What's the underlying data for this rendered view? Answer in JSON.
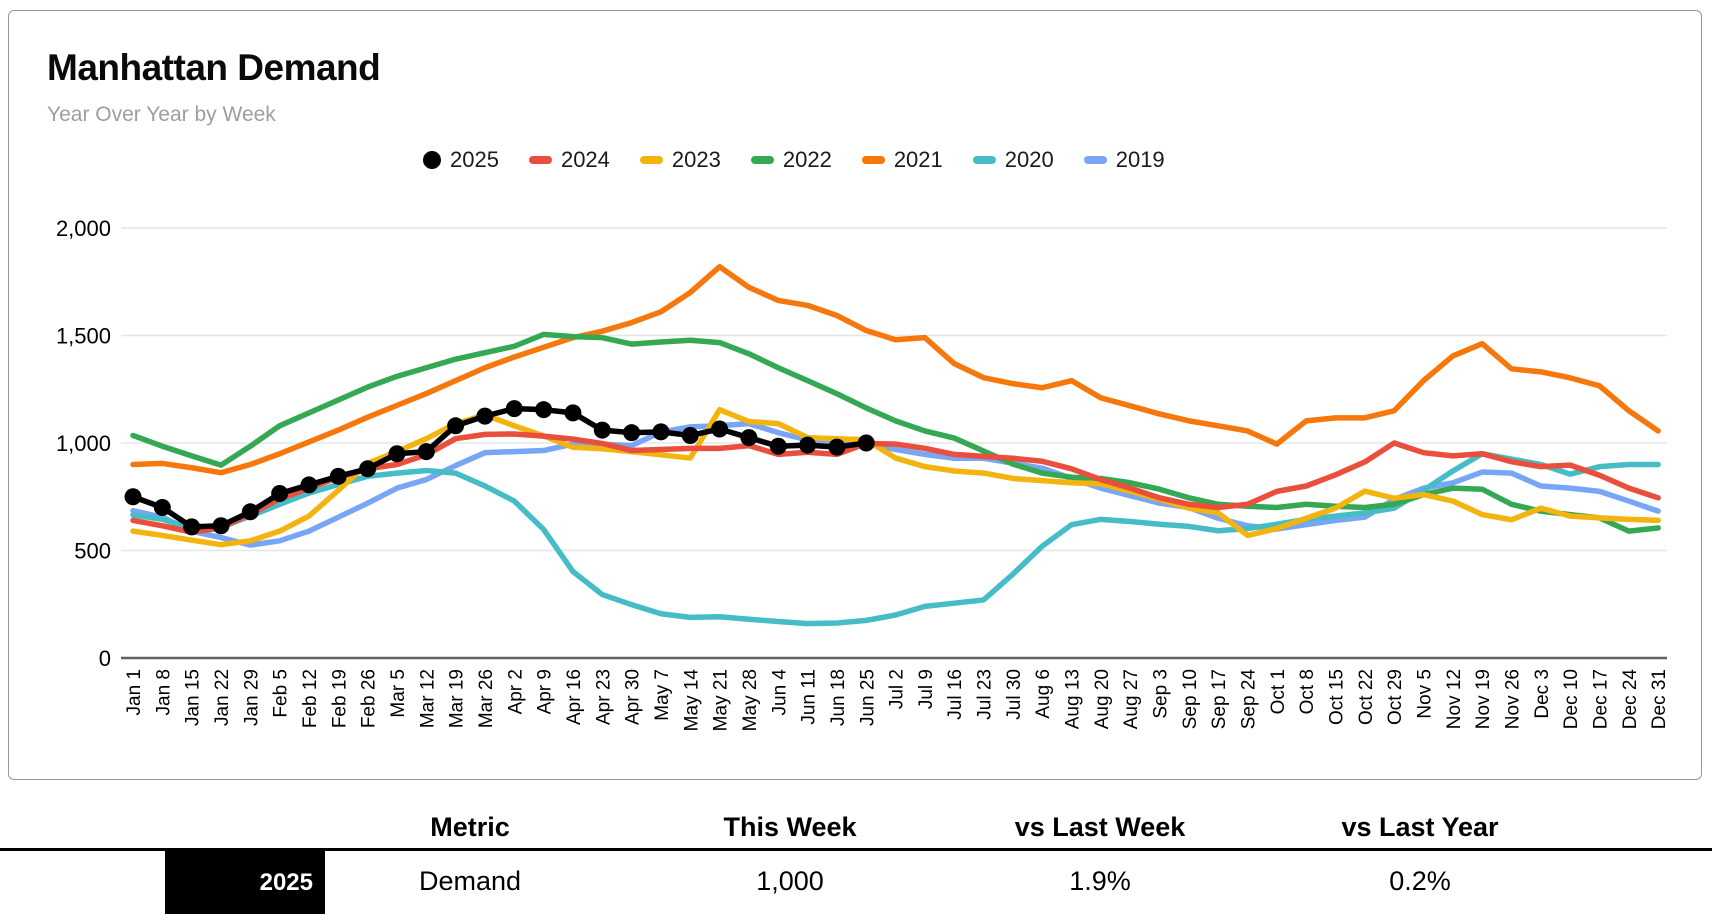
{
  "card": {
    "title": "Manhattan Demand",
    "subtitle": "Year Over Year by Week"
  },
  "chart_data": {
    "type": "line",
    "title": "Manhattan Demand",
    "subtitle": "Year Over Year by Week",
    "xlabel": "",
    "ylabel": "",
    "ylim": [
      0,
      2000
    ],
    "grid": true,
    "legend_position": "top",
    "ytick_values": [
      0,
      500,
      1000,
      1500,
      2000
    ],
    "ytick_labels": [
      "0",
      "500",
      "1,000",
      "1,500",
      "2,000"
    ],
    "x": [
      "Jan 1",
      "Jan 8",
      "Jan 15",
      "Jan 22",
      "Jan 29",
      "Feb 5",
      "Feb 12",
      "Feb 19",
      "Feb 26",
      "Mar 5",
      "Mar 12",
      "Mar 19",
      "Mar 26",
      "Apr 2",
      "Apr 9",
      "Apr 16",
      "Apr 23",
      "Apr 30",
      "May 7",
      "May 14",
      "May 21",
      "May 28",
      "Jun 4",
      "Jun 11",
      "Jun 18",
      "Jun 25",
      "Jul 2",
      "Jul 9",
      "Jul 16",
      "Jul 23",
      "Jul 30",
      "Aug 6",
      "Aug 13",
      "Aug 20",
      "Aug 27",
      "Sep 3",
      "Sep 10",
      "Sep 17",
      "Sep 24",
      "Oct 1",
      "Oct 8",
      "Oct 15",
      "Oct 22",
      "Oct 29",
      "Nov 5",
      "Nov 12",
      "Nov 19",
      "Nov 26",
      "Dec 3",
      "Dec 10",
      "Dec 17",
      "Dec 24",
      "Dec 31"
    ],
    "series": [
      {
        "name": "2025",
        "color": "#000000",
        "marker": "circle",
        "values": [
          750,
          700,
          610,
          615,
          680,
          765,
          805,
          845,
          880,
          950,
          960,
          1080,
          1125,
          1160,
          1155,
          1140,
          1060,
          1048,
          1052,
          1035,
          1065,
          1025,
          985,
          990,
          981,
          1000
        ]
      },
      {
        "name": "2024",
        "color": "#e94f3c",
        "marker": "dash",
        "values": [
          640,
          615,
          585,
          605,
          670,
          740,
          790,
          840,
          880,
          900,
          945,
          1020,
          1040,
          1042,
          1032,
          1018,
          998,
          965,
          970,
          975,
          975,
          988,
          947,
          957,
          947,
          998,
          995,
          975,
          947,
          938,
          929,
          915,
          880,
          830,
          790,
          745,
          715,
          700,
          715,
          775,
          800,
          852,
          912,
          1000,
          955,
          940,
          950,
          913,
          890,
          897,
          850,
          790,
          745
        ]
      },
      {
        "name": "2023",
        "color": "#f3b410",
        "marker": "dash",
        "values": [
          590,
          570,
          548,
          527,
          545,
          590,
          660,
          780,
          905,
          960,
          1020,
          1090,
          1130,
          1080,
          1033,
          980,
          973,
          960,
          945,
          930,
          1155,
          1100,
          1090,
          1025,
          1020,
          1015,
          930,
          890,
          870,
          860,
          835,
          825,
          815,
          810,
          776,
          738,
          697,
          675,
          570,
          602,
          650,
          697,
          776,
          743,
          760,
          730,
          667,
          643,
          697,
          660,
          652,
          645,
          640
        ]
      },
      {
        "name": "2022",
        "color": "#34a853",
        "marker": "dash",
        "values": [
          1035,
          985,
          940,
          897,
          985,
          1080,
          1140,
          1200,
          1260,
          1310,
          1350,
          1390,
          1420,
          1450,
          1505,
          1495,
          1490,
          1460,
          1470,
          1478,
          1467,
          1415,
          1350,
          1290,
          1229,
          1163,
          1103,
          1056,
          1023,
          963,
          902,
          860,
          841,
          835,
          815,
          785,
          745,
          715,
          706,
          700,
          715,
          706,
          700,
          715,
          760,
          790,
          785,
          715,
          683,
          667,
          652,
          590,
          605
        ]
      },
      {
        "name": "2021",
        "color": "#f6770b",
        "marker": "dash",
        "values": [
          900,
          905,
          885,
          862,
          900,
          950,
          1005,
          1060,
          1120,
          1175,
          1230,
          1290,
          1350,
          1400,
          1445,
          1490,
          1520,
          1560,
          1610,
          1700,
          1820,
          1724,
          1663,
          1640,
          1593,
          1523,
          1480,
          1490,
          1369,
          1304,
          1276,
          1257,
          1290,
          1210,
          1173,
          1135,
          1103,
          1080,
          1056,
          995,
          1103,
          1117,
          1117,
          1150,
          1290,
          1405,
          1462,
          1345,
          1331,
          1303,
          1266,
          1150,
          1056
        ]
      },
      {
        "name": "2020",
        "color": "#46bdc6",
        "marker": "dash",
        "values": [
          665,
          645,
          603,
          608,
          660,
          715,
          767,
          807,
          845,
          860,
          872,
          860,
          800,
          730,
          598,
          402,
          295,
          248,
          206,
          189,
          192,
          180,
          170,
          160,
          163,
          175,
          200,
          240,
          255,
          270,
          390,
          520,
          620,
          645,
          635,
          622,
          612,
          592,
          602,
          622,
          645,
          660,
          675,
          697,
          780,
          870,
          950,
          925,
          900,
          855,
          890,
          900,
          900
        ]
      },
      {
        "name": "2019",
        "color": "#78a6f5",
        "marker": "dash",
        "values": [
          685,
          655,
          590,
          560,
          525,
          545,
          590,
          655,
          720,
          790,
          830,
          895,
          955,
          960,
          965,
          995,
          995,
          988,
          1050,
          1075,
          1080,
          1090,
          1048,
          1014,
          1000,
          995,
          970,
          947,
          929,
          929,
          906,
          883,
          835,
          790,
          755,
          720,
          700,
          650,
          615,
          600,
          620,
          640,
          655,
          738,
          790,
          815,
          865,
          860,
          800,
          790,
          775,
          730,
          683
        ]
      }
    ]
  },
  "table": {
    "headers": [
      "Metric",
      "This Week",
      "vs Last Week",
      "vs Last Year"
    ],
    "row": {
      "year": "2025",
      "metric": "Demand",
      "this_week": "1,000",
      "vs_last_week": "1.9%",
      "vs_last_year": "0.2%"
    },
    "chip_color": "#000000"
  },
  "colors": {
    "grid": "#e6e6e6",
    "axis": "#616161",
    "card_border": "#979797",
    "subtitle": "#9e9e9e"
  }
}
